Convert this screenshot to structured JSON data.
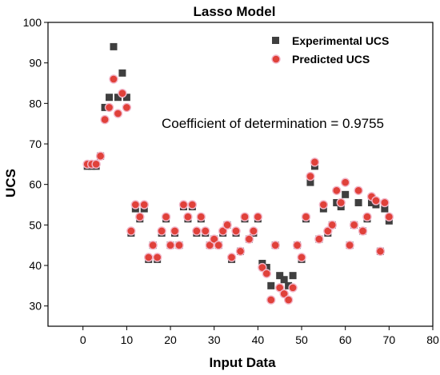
{
  "chart_data": {
    "type": "scatter",
    "title": "Lasso Model",
    "xlabel": "Input Data",
    "ylabel": "UCS",
    "xlim": [
      -8,
      80
    ],
    "ylim": [
      25,
      100
    ],
    "xticks": [
      0,
      10,
      20,
      30,
      40,
      50,
      60,
      70,
      80
    ],
    "yticks": [
      30,
      40,
      50,
      60,
      70,
      80,
      90,
      100
    ],
    "xtick_labels": [
      "0",
      "10",
      "20",
      "30",
      "40",
      "50",
      "60",
      "70",
      "80"
    ],
    "ytick_labels": [
      "30",
      "40",
      "50",
      "60",
      "70",
      "80",
      "90",
      "100"
    ],
    "legend_position": "top-right",
    "grid": false,
    "annotation": "Coefficient of determination = 0.9755",
    "x": [
      1,
      2,
      3,
      4,
      5,
      6,
      7,
      8,
      9,
      10,
      11,
      12,
      13,
      14,
      15,
      16,
      17,
      18,
      19,
      20,
      21,
      22,
      23,
      24,
      25,
      26,
      27,
      28,
      29,
      30,
      31,
      32,
      33,
      34,
      35,
      36,
      37,
      38,
      39,
      40,
      41,
      42,
      43,
      44,
      45,
      46,
      47,
      48,
      49,
      50,
      51,
      52,
      53,
      54,
      55,
      56,
      57,
      58,
      59,
      60,
      61,
      62,
      63,
      64,
      65,
      66,
      67,
      68,
      69,
      70
    ],
    "series": [
      {
        "name": "Experimental UCS",
        "marker": "square",
        "color": "#3f3f3f",
        "values": [
          64.5,
          64.5,
          64.5,
          67,
          79,
          81.5,
          94,
          81.5,
          87.5,
          81.5,
          48,
          54,
          51.5,
          54,
          41.5,
          45,
          41.5,
          48,
          51.5,
          45,
          48,
          45,
          54.5,
          51.5,
          54.5,
          48,
          51.5,
          48,
          45,
          46.5,
          45,
          48,
          50,
          41.5,
          48,
          43.5,
          51.5,
          46.5,
          48,
          51.5,
          40.5,
          39.5,
          35,
          45,
          37.5,
          36.5,
          35,
          37.5,
          45,
          41.5,
          51.5,
          60.5,
          64.5,
          46.5,
          54,
          48,
          50,
          55.5,
          54.5,
          57.5,
          45,
          50,
          55.5,
          48.5,
          51.5,
          55.5,
          55,
          43.5,
          54,
          51
        ]
      },
      {
        "name": "Predicted UCS",
        "marker": "circle",
        "color": "#e0413a",
        "values": [
          65,
          65,
          65,
          67,
          76,
          79,
          86,
          77.5,
          82.5,
          79,
          48.5,
          55,
          52,
          55,
          42,
          45,
          42,
          48.5,
          52,
          45,
          48.5,
          45,
          55,
          52,
          55,
          48.5,
          52,
          48.5,
          45,
          46.5,
          45,
          48.5,
          50,
          42,
          48.5,
          43.5,
          52,
          46.5,
          48.5,
          52,
          39.5,
          38,
          31.5,
          45,
          34.5,
          33,
          31.5,
          34.5,
          45,
          42,
          52,
          62,
          65.5,
          46.5,
          55,
          48.5,
          50,
          58.5,
          55.5,
          60.5,
          45,
          50,
          58.5,
          48.5,
          52,
          57,
          56,
          43.5,
          55.5,
          52
        ]
      }
    ]
  }
}
